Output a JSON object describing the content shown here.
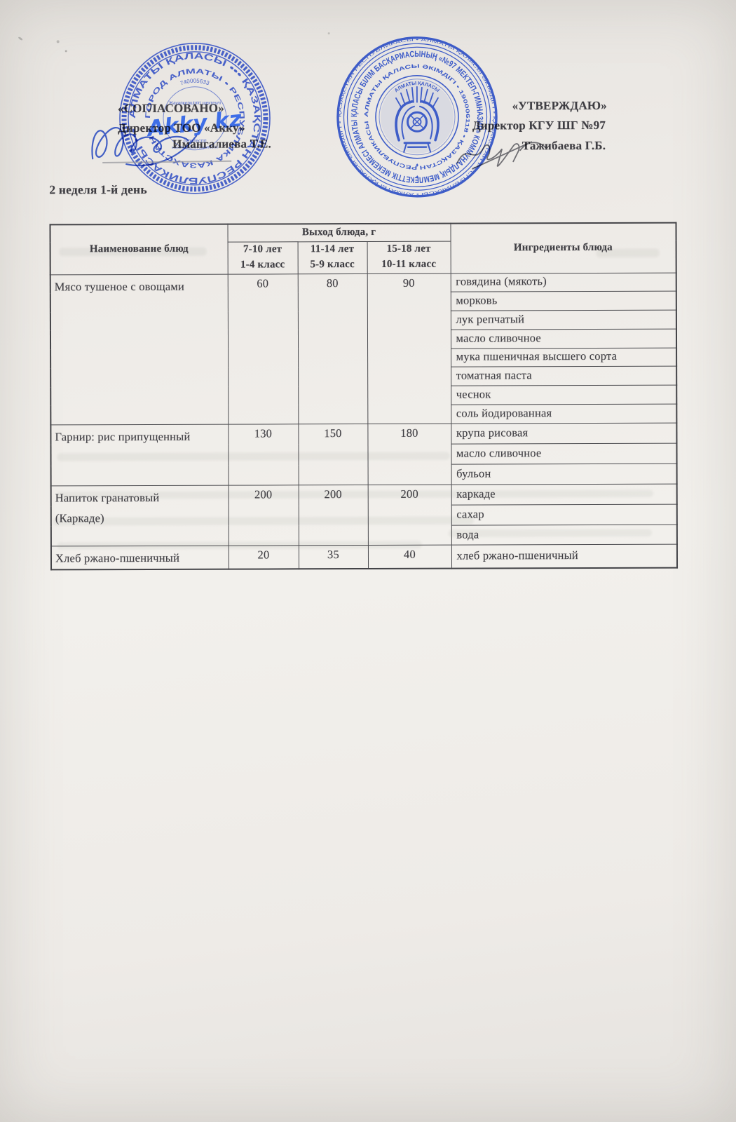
{
  "document": {
    "week_day_label": "2 неделя 1-й день",
    "approval_left": {
      "title": "«СОГЛАСОВАНО»",
      "role": "Директор ТОО «Акку»",
      "name": "Имангалиева Т.Е."
    },
    "approval_right": {
      "title": "«УТВЕРЖДАЮ»",
      "role": "Директор КГУ ШГ №97",
      "name": "Тажибаева Г.Б."
    }
  },
  "stamps": {
    "left": {
      "color": "#3a56c6",
      "logo_color": "#2e63e8",
      "ring_main": "АЛМАТЫ ҚАЛАСЫ  •••  ҚАЗАҚСТАН РЕСПУБЛИКАСЫ  •••",
      "ring_inner": "ГОРОД АЛМАТЫ  •  РЕСПУБЛИКА КАЗАХСТАН  •",
      "ring_number": "740005633",
      "tiny_top": "Жауапкершілігі шектеулі",
      "logo": "Akky kz",
      "tiny_bottom": "серіктестігі",
      "tiny_bottom2": "жауапкершілігі серіктестігі"
    },
    "right": {
      "color": "#2e50c6",
      "ring_tiny": "ҚАЗАҚСТАН РЕСПУБЛИКАСЫ • АЛМАТЫ ҚАЛАСЫ ӘКІМДІГІ • ҚАЗАҚСТАН РЕСПУБЛИКАСЫ • АЛМАТЫ ҚАЛАСЫ ӘКІМДІГІ •",
      "ring_main": "ҚАЛАСЫ БІЛІМ БАСҚАРМАСЫНЫҢ «№97 МЕКТЕП-ГИМНАЗИЯ» КОММУНАЛДЫҚ МЕМЛЕКЕТТІК МЕКЕМЕСІ АЛМАТЫ",
      "ring_inner": "АЛМАТЫ ҚАЛАСЫ ӘКІМДІГІ  •  190006118  •  ҚАЗАҚСТАН РЕСПУБЛИКАСЫ",
      "emblem_arc": "АЛМАТЫ ҚАЛАСЫ",
      "diamond": "♦"
    }
  },
  "table": {
    "headers": {
      "dish": "Наименование блюд",
      "output": "Выход блюда, г",
      "ingredients": "Ингредиенты блюда",
      "age_groups": [
        {
          "age": "7-10 лет",
          "grade": "1-4 класс"
        },
        {
          "age": "11-14 лет",
          "grade": "5-9 класс"
        },
        {
          "age": "15-18 лет",
          "grade": "10-11 класс"
        }
      ]
    },
    "rows": [
      {
        "dish": "Мясо тушеное с овощами",
        "portions": [
          "60",
          "80",
          "90"
        ],
        "ingredients": [
          "говядина (мякоть)",
          "морковь",
          "лук репчатый",
          "масло сливочное",
          "мука пшеничная высшего сорта",
          "томатная паста",
          "чеснок",
          "соль йодированная"
        ]
      },
      {
        "dish": "Гарнир: рис припущенный",
        "portions": [
          "130",
          "150",
          "180"
        ],
        "ingredients": [
          "крупа рисовая",
          "масло сливочное",
          "бульон"
        ]
      },
      {
        "dish": "Напиток гранатовый (Каркаде)",
        "portions": [
          "200",
          "200",
          "200"
        ],
        "ingredients": [
          "каркаде",
          "сахар",
          "вода"
        ]
      },
      {
        "dish": "Хлеб ржано-пшеничный",
        "portions": [
          "20",
          "35",
          "40"
        ],
        "ingredients": [
          "хлеб ржано-пшеничный"
        ]
      }
    ]
  }
}
